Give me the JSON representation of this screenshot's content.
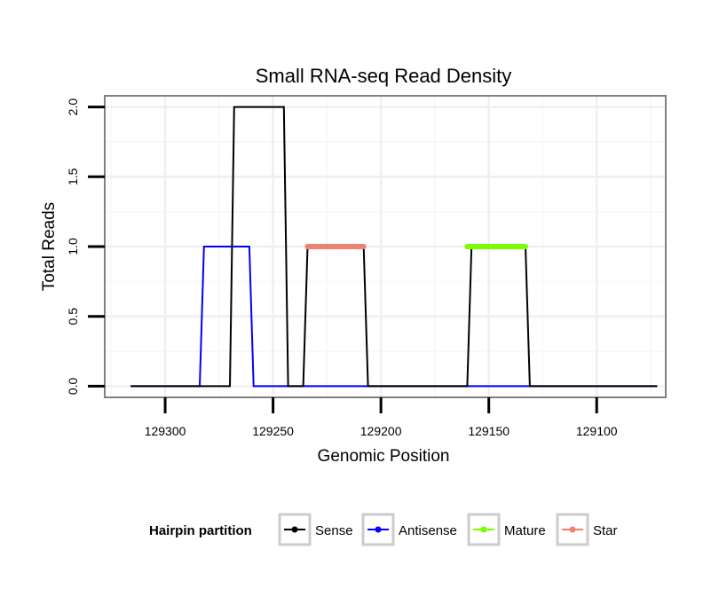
{
  "chart_data": {
    "type": "line",
    "title": "Small RNA-seq Read Density",
    "xlabel": "Genomic Position",
    "ylabel": "Total Reads",
    "xlim": [
      129328,
      129068
    ],
    "ylim": [
      -0.08,
      2.08
    ],
    "x_reversed": true,
    "x_ticks": [
      129300,
      129250,
      129200,
      129150,
      129100
    ],
    "x_tick_labels": [
      "129300",
      "129250",
      "129200",
      "129150",
      "129100"
    ],
    "y_ticks": [
      0.0,
      0.5,
      1.0,
      1.5,
      2.0
    ],
    "y_tick_labels": [
      "0.0",
      "0.5",
      "1.0",
      "1.5",
      "2.0"
    ],
    "grid": true,
    "series": [
      {
        "name": "Antisense",
        "color": "#0000ff",
        "style": "line",
        "x": [
          129316,
          129284,
          129282,
          129261,
          129259,
          129250,
          129226,
          129150,
          129148,
          129072
        ],
        "y": [
          0,
          0,
          1,
          1,
          0,
          0,
          0,
          0,
          0,
          0
        ]
      },
      {
        "name": "Sense",
        "color": "#000000",
        "style": "line",
        "x": [
          129316,
          129284,
          129270,
          129268,
          129245,
          129243,
          129236,
          129234,
          129208,
          129206,
          129160,
          129158,
          129133,
          129131,
          129072
        ],
        "y": [
          0,
          0,
          0,
          2,
          2,
          0,
          0,
          1,
          1,
          0,
          0,
          1,
          1,
          0,
          0
        ]
      },
      {
        "name": "Star",
        "color": "#f08070",
        "style": "segment",
        "x": [
          129234,
          129208
        ],
        "y": [
          1,
          1
        ]
      },
      {
        "name": "Mature",
        "color": "#7cfc00",
        "style": "segment",
        "x": [
          129160,
          129133
        ],
        "y": [
          1,
          1
        ]
      }
    ],
    "legend": {
      "title": "Hairpin partition",
      "placement": "bottom",
      "entries": [
        {
          "label": "Sense",
          "color": "#000000"
        },
        {
          "label": "Antisense",
          "color": "#0000ff"
        },
        {
          "label": "Mature",
          "color": "#7cfc00"
        },
        {
          "label": "Star",
          "color": "#f08070"
        }
      ]
    }
  }
}
